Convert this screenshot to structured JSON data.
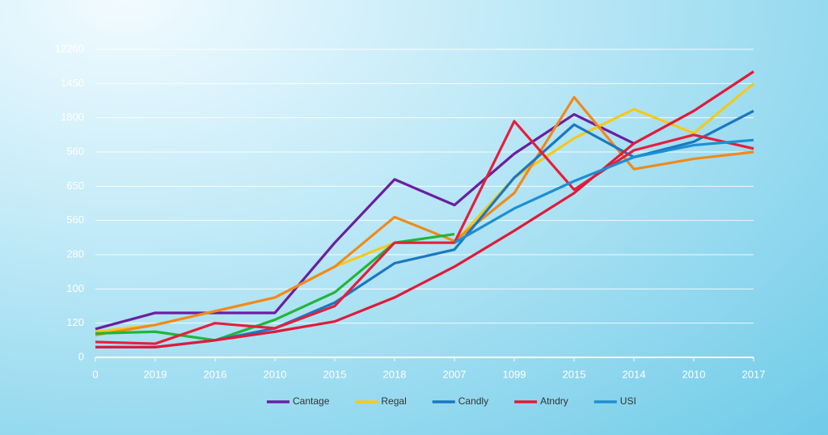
{
  "chart_data": {
    "type": "line",
    "categories": [
      "0",
      "2019",
      "2016",
      "2010",
      "2015",
      "2018",
      "2007",
      "1099",
      "2015",
      "2014",
      "2010",
      "2017"
    ],
    "series": [
      {
        "name": "Cantage",
        "color": "#6a1fa0",
        "values": [
          0.83,
          1.3,
          1.3,
          1.3,
          3.35,
          5.2,
          4.45,
          5.95,
          7.1,
          6.25,
          null,
          null
        ]
      },
      {
        "name": "Regal",
        "color": "#f4c91c",
        "values": [
          0.75,
          0.95,
          1.35,
          1.75,
          2.65,
          3.35,
          3.35,
          5.25,
          6.4,
          7.25,
          6.55,
          8.0
        ]
      },
      {
        "color": "#f08a1c",
        "values": [
          0.65,
          0.95,
          1.35,
          1.75,
          2.65,
          4.1,
          3.4,
          4.8,
          7.6,
          5.5,
          5.8,
          6.0
        ]
      },
      {
        "color": "#22b53a",
        "values": [
          0.7,
          0.75,
          0.5,
          1.1,
          1.9,
          3.35,
          3.6,
          null,
          null,
          null,
          null,
          null
        ]
      },
      {
        "name": "Candly",
        "color": "#1a78c0",
        "values": [
          0.3,
          0.3,
          0.5,
          0.85,
          1.6,
          2.75,
          3.15,
          5.25,
          6.8,
          5.85,
          6.3,
          7.2
        ]
      },
      {
        "color": "#e3203c",
        "values": [
          0.45,
          0.4,
          1.0,
          0.85,
          1.5,
          3.35,
          3.35,
          6.9,
          4.9,
          6.05,
          6.5,
          6.1
        ]
      },
      {
        "name": "Atndry",
        "color": "#e01a3a",
        "values": [
          0.3,
          0.3,
          0.5,
          0.75,
          1.05,
          1.75,
          2.65,
          3.7,
          4.8,
          6.25,
          7.2,
          8.35
        ]
      },
      {
        "name": "USI",
        "color": "#1d8fd2",
        "values": [
          null,
          null,
          null,
          null,
          null,
          null,
          3.35,
          4.35,
          5.15,
          5.85,
          6.2,
          6.35
        ]
      }
    ],
    "ylim": [
      0,
      9
    ],
    "yticks": [
      0,
      {
        "value": 1,
        "label": "120"
      },
      {
        "value": 2,
        "label": "100"
      },
      {
        "value": 3,
        "label": "280"
      },
      {
        "value": 4,
        "label": "560"
      },
      {
        "value": 5,
        "label": "650"
      },
      {
        "value": 6,
        "label": "560"
      },
      {
        "value": 7,
        "label": "1800"
      },
      {
        "value": 8,
        "label": "1450"
      },
      {
        "value": 9,
        "label": "12260"
      }
    ],
    "grid": true
  }
}
